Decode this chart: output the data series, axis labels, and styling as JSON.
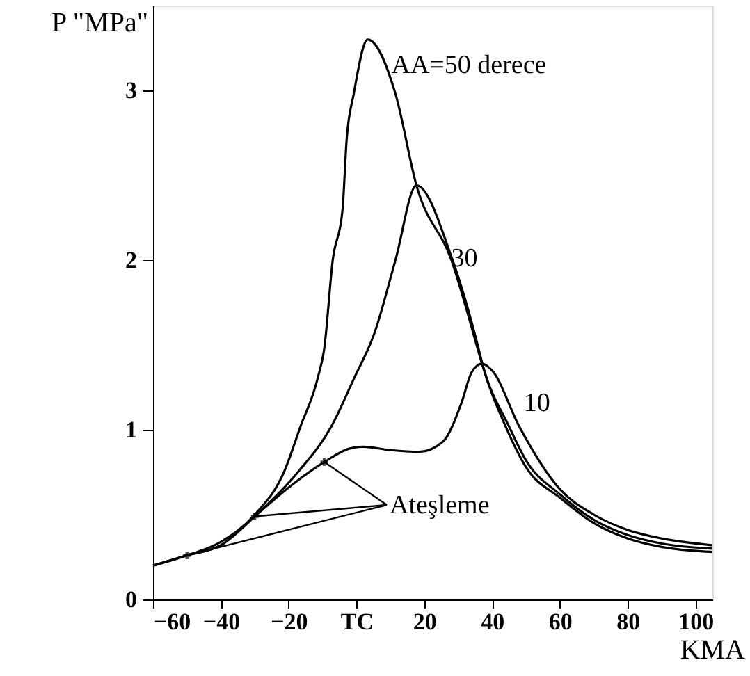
{
  "chart_data": {
    "type": "line",
    "ylabel": "P \"MPa\"",
    "xlabel": "KMA",
    "xlim": [
      -60,
      105
    ],
    "xticks": [
      -60,
      -40,
      -20,
      {
        "value": 0,
        "label": "TC"
      },
      20,
      40,
      60,
      80,
      100
    ],
    "ylim": [
      0,
      3.5
    ],
    "yticks": [
      0,
      1,
      2,
      3
    ],
    "grid": false,
    "line_style": "solid",
    "series": [
      {
        "name": "AA=50 derece",
        "color": "#000000",
        "x": [
          -60,
          -50,
          -40,
          -30,
          -21.4,
          -16.5,
          -11.5,
          -9.5,
          -7,
          -4.1,
          -2.9,
          -0.8,
          3.3,
          11.5,
          17.7,
          28,
          36,
          37,
          44,
          50,
          60,
          70,
          80,
          90,
          105
        ],
        "values": [
          0.2,
          0.26,
          0.34,
          0.5,
          0.75,
          1.02,
          1.3,
          1.48,
          2.0,
          2.3,
          2.71,
          2.98,
          3.3,
          2.98,
          2.44,
          2.0,
          1.46,
          1.39,
          1.02,
          0.78,
          0.6,
          0.45,
          0.36,
          0.31,
          0.28
        ]
      },
      {
        "name": "30",
        "color": "#000000",
        "x": [
          -60,
          -50,
          -40,
          -30,
          -17.3,
          -7.4,
          -0.8,
          5.3,
          11.5,
          17.7,
          28,
          36,
          37,
          45,
          50,
          60,
          70,
          80,
          90,
          105
        ],
        "values": [
          0.2,
          0.26,
          0.32,
          0.49,
          0.75,
          1.02,
          1.3,
          1.57,
          2.0,
          2.44,
          2.02,
          1.48,
          1.4,
          1.02,
          0.82,
          0.62,
          0.47,
          0.38,
          0.33,
          0.3
        ]
      },
      {
        "name": "10",
        "color": "#000000",
        "x": [
          -60,
          -50,
          -40,
          -30,
          -20,
          -9.5,
          -2,
          2,
          10,
          18.5,
          25.5,
          31,
          34,
          37,
          40,
          48,
          60,
          70,
          80,
          90,
          105
        ],
        "values": [
          0.2,
          0.26,
          0.32,
          0.49,
          0.66,
          0.81,
          0.89,
          0.9,
          0.88,
          0.87,
          0.93,
          1.16,
          1.34,
          1.39,
          1.35,
          1.02,
          0.65,
          0.5,
          0.41,
          0.36,
          0.32
        ]
      },
      {
        "type": "scatter",
        "marker": "cross",
        "color": "#000000",
        "x": [
          -50,
          -30,
          -9.5
        ],
        "values": [
          0.26,
          0.49,
          0.81
        ]
      }
    ],
    "annotations": [
      {
        "text": "Ateşleme",
        "x": -30,
        "y": 0.49
      }
    ]
  }
}
